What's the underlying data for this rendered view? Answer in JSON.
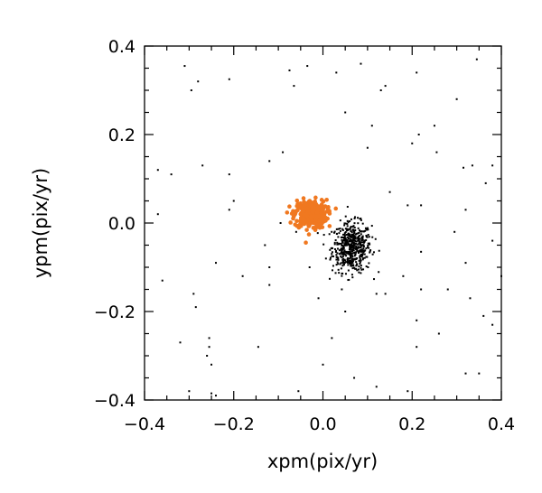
{
  "chart_data": {
    "type": "scatter",
    "title": "",
    "xlabel": "xpm(pix/yr)",
    "ylabel": "ypm(pix/yr)",
    "xlim": [
      -0.4,
      0.4
    ],
    "ylim": [
      -0.4,
      0.4
    ],
    "xticks": [
      "−0.4",
      "−0.2",
      "0.0",
      "0.2",
      "0.4"
    ],
    "yticks": [
      "−0.4",
      "−0.2",
      "0.0",
      "0.2",
      "0.4"
    ],
    "xtick_values": [
      -0.4,
      -0.2,
      0.0,
      0.2,
      0.4
    ],
    "ytick_values": [
      -0.4,
      -0.2,
      0.0,
      0.2,
      0.4
    ],
    "grid": false,
    "legend": "none",
    "series": [
      {
        "color": "#000000",
        "marker": "small-dot",
        "cluster": {
          "center": [
            0.065,
            -0.055
          ],
          "spread": [
            0.022,
            0.028
          ],
          "count": 520
        },
        "points": [
          [
            -0.31,
            0.355
          ],
          [
            -0.295,
            0.3
          ],
          [
            -0.28,
            0.32
          ],
          [
            -0.21,
            0.325
          ],
          [
            -0.075,
            0.345
          ],
          [
            -0.065,
            0.31
          ],
          [
            -0.035,
            0.355
          ],
          [
            0.03,
            0.34
          ],
          [
            0.085,
            0.36
          ],
          [
            0.13,
            0.3
          ],
          [
            0.14,
            0.31
          ],
          [
            0.21,
            0.34
          ],
          [
            0.3,
            0.28
          ],
          [
            0.345,
            0.37
          ],
          [
            0.25,
            0.22
          ],
          [
            0.215,
            0.2
          ],
          [
            0.11,
            0.22
          ],
          [
            0.05,
            0.25
          ],
          [
            -0.37,
            0.12
          ],
          [
            -0.34,
            0.11
          ],
          [
            -0.27,
            0.13
          ],
          [
            -0.21,
            0.11
          ],
          [
            -0.12,
            0.14
          ],
          [
            -0.09,
            0.16
          ],
          [
            0.1,
            0.17
          ],
          [
            0.2,
            0.18
          ],
          [
            0.255,
            0.16
          ],
          [
            0.315,
            0.125
          ],
          [
            0.335,
            0.13
          ],
          [
            0.38,
            0.13
          ],
          [
            0.365,
            0.09
          ],
          [
            0.15,
            0.07
          ],
          [
            0.22,
            0.04
          ],
          [
            -0.37,
            0.02
          ],
          [
            -0.2,
            0.05
          ],
          [
            -0.21,
            0.03
          ],
          [
            -0.095,
            0.0
          ],
          [
            -0.06,
            -0.02
          ],
          [
            0.19,
            0.04
          ],
          [
            0.32,
            0.03
          ],
          [
            0.295,
            -0.02
          ],
          [
            0.38,
            -0.04
          ],
          [
            0.22,
            -0.065
          ],
          [
            -0.13,
            -0.05
          ],
          [
            -0.24,
            -0.09
          ],
          [
            -0.12,
            -0.1
          ],
          [
            -0.03,
            -0.1
          ],
          [
            0.32,
            -0.09
          ],
          [
            -0.36,
            -0.13
          ],
          [
            -0.29,
            -0.16
          ],
          [
            -0.285,
            -0.19
          ],
          [
            -0.18,
            -0.12
          ],
          [
            -0.12,
            -0.14
          ],
          [
            0.12,
            -0.16
          ],
          [
            0.14,
            -0.16
          ],
          [
            0.18,
            -0.12
          ],
          [
            0.22,
            -0.15
          ],
          [
            0.28,
            -0.15
          ],
          [
            0.33,
            -0.17
          ],
          [
            0.36,
            -0.21
          ],
          [
            0.38,
            -0.23
          ],
          [
            0.21,
            -0.22
          ],
          [
            0.26,
            -0.25
          ],
          [
            0.32,
            -0.34
          ],
          [
            0.35,
            -0.34
          ],
          [
            0.05,
            -0.2
          ],
          [
            -0.01,
            -0.17
          ],
          [
            -0.32,
            -0.27
          ],
          [
            -0.255,
            -0.26
          ],
          [
            -0.255,
            -0.28
          ],
          [
            -0.25,
            -0.32
          ],
          [
            -0.26,
            -0.3
          ],
          [
            -0.145,
            -0.28
          ],
          [
            0.0,
            -0.32
          ],
          [
            0.02,
            -0.26
          ],
          [
            0.21,
            -0.28
          ],
          [
            0.12,
            -0.37
          ],
          [
            0.19,
            -0.38
          ],
          [
            -0.3,
            -0.38
          ],
          [
            -0.24,
            -0.39
          ],
          [
            -0.25,
            -0.385
          ],
          [
            -0.055,
            -0.38
          ],
          [
            0.07,
            -0.35
          ],
          [
            0.4,
            -0.12
          ]
        ]
      },
      {
        "color": "#f07820",
        "marker": "dot",
        "cluster": {
          "center": [
            -0.028,
            0.02
          ],
          "spread": [
            0.018,
            0.016
          ],
          "count": 320
        },
        "points": []
      }
    ]
  }
}
